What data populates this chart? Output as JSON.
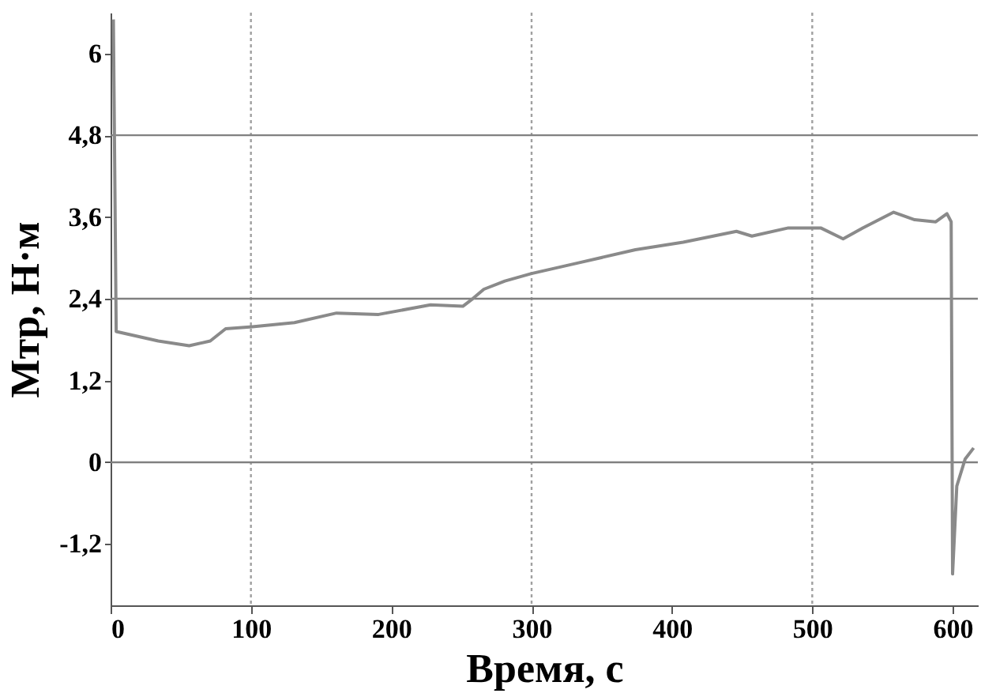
{
  "chart_data": {
    "type": "line",
    "xlabel": "Время, с",
    "ylabel": "Мтр, Н·м",
    "xlim": [
      0,
      618
    ],
    "ylim": [
      -2.1,
      6.6
    ],
    "xticks": [
      0,
      100,
      200,
      300,
      400,
      500,
      600
    ],
    "yticks": [
      {
        "value": -1.2,
        "label": "-1,2"
      },
      {
        "value": 0,
        "label": "0"
      },
      {
        "value": 1.2,
        "label": "1,2"
      },
      {
        "value": 2.4,
        "label": "2,4"
      },
      {
        "value": 3.6,
        "label": "3,6"
      },
      {
        "value": 4.8,
        "label": "4,8"
      },
      {
        "value": 6,
        "label": "6"
      }
    ],
    "ref_lines": [
      {
        "axis": "y",
        "value": 4.8,
        "color": "#808080"
      },
      {
        "axis": "y",
        "value": 2.4,
        "color": "#808080"
      },
      {
        "axis": "y",
        "value": 0,
        "color": "#808080"
      },
      {
        "axis": "x",
        "value": 100,
        "color": "#a0a0a0",
        "line_style": "dotted"
      },
      {
        "axis": "x",
        "value": 300,
        "color": "#a0a0a0",
        "line_style": "dotted"
      },
      {
        "axis": "x",
        "value": 500,
        "color": "#a0a0a0",
        "line_style": "dotted"
      }
    ],
    "series": [
      {
        "color": "#8a8a8a",
        "x": [
          2,
          4,
          34,
          56,
          71,
          82,
          101,
          131,
          161,
          191,
          228,
          251,
          258,
          266,
          281,
          300,
          334,
          374,
          408,
          446,
          457,
          483,
          506,
          522,
          536,
          558,
          573,
          588,
          596,
          599,
          600,
          603,
          609,
          615
        ],
        "values": [
          6.5,
          1.92,
          1.78,
          1.71,
          1.78,
          1.96,
          1.99,
          2.05,
          2.19,
          2.17,
          2.31,
          2.29,
          2.4,
          2.54,
          2.66,
          2.77,
          2.93,
          3.12,
          3.23,
          3.39,
          3.32,
          3.44,
          3.44,
          3.28,
          3.44,
          3.67,
          3.56,
          3.53,
          3.65,
          3.53,
          -1.64,
          -0.35,
          0.05,
          0.21
        ]
      }
    ]
  }
}
